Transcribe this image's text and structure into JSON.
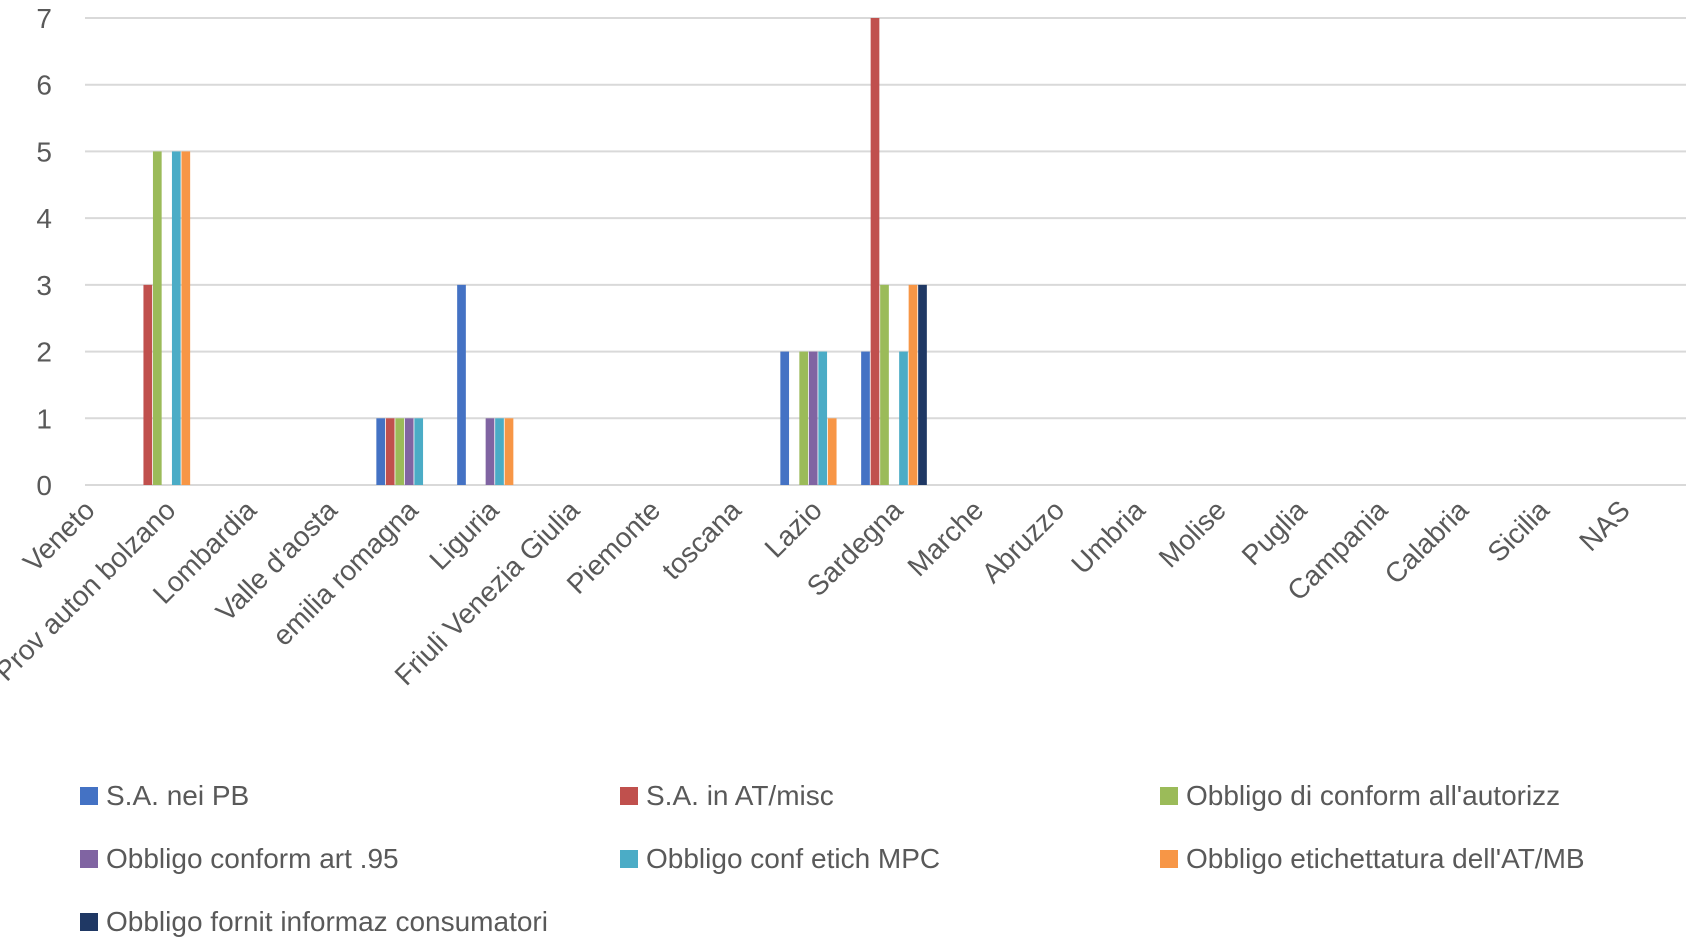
{
  "chart_data": {
    "type": "bar",
    "categories": [
      "Veneto",
      "Prov auton bolzano",
      "Lombardia",
      "Valle d'aosta",
      "emilia romagna",
      "Liguria",
      "Friuli Venezia Giulia",
      "Piemonte",
      "toscana",
      "Lazio",
      "Sardegna",
      "Marche",
      "Abruzzo",
      "Umbria",
      "Molise",
      "Puglia",
      "Campania",
      "Calabria",
      "Sicilia",
      "NAS"
    ],
    "ylim": [
      0,
      7
    ],
    "yticks": [
      "0",
      "1",
      "2",
      "3",
      "4",
      "5",
      "6",
      "7"
    ],
    "grid": true,
    "legend_position": "bottom",
    "series": [
      {
        "name": "S.A. nei PB",
        "color": "#4472C4",
        "values": [
          0,
          0,
          0,
          0,
          1,
          3,
          0,
          0,
          0,
          2,
          2,
          0,
          0,
          0,
          0,
          0,
          0,
          0,
          0,
          0
        ]
      },
      {
        "name": "S.A. in AT/misc",
        "color": "#C0504D",
        "values": [
          0,
          3,
          0,
          0,
          1,
          0,
          0,
          0,
          0,
          0,
          7,
          0,
          0,
          0,
          0,
          0,
          0,
          0,
          0,
          0
        ]
      },
      {
        "name": "Obbligo di conform all'autorizz",
        "color": "#9BBB59",
        "values": [
          0,
          5,
          0,
          0,
          1,
          0,
          0,
          0,
          0,
          2,
          3,
          0,
          0,
          0,
          0,
          0,
          0,
          0,
          0,
          0
        ]
      },
      {
        "name": "Obbligo conform art .95",
        "color": "#8064A2",
        "values": [
          0,
          0,
          0,
          0,
          1,
          1,
          0,
          0,
          0,
          2,
          0,
          0,
          0,
          0,
          0,
          0,
          0,
          0,
          0,
          0
        ]
      },
      {
        "name": "Obbligo conf etich MPC",
        "color": "#4BACC6",
        "values": [
          0,
          5,
          0,
          0,
          1,
          1,
          0,
          0,
          0,
          2,
          2,
          0,
          0,
          0,
          0,
          0,
          0,
          0,
          0,
          0
        ]
      },
      {
        "name": "Obbligo etichettatura  dell'AT/MB",
        "color": "#F79646",
        "values": [
          0,
          5,
          0,
          0,
          0,
          1,
          0,
          0,
          0,
          1,
          3,
          0,
          0,
          0,
          0,
          0,
          0,
          0,
          0,
          0
        ]
      },
      {
        "name": "Obbligo fornit informaz consumatori",
        "color": "#1F3864",
        "values": [
          0,
          0,
          0,
          0,
          0,
          0,
          0,
          0,
          0,
          0,
          3,
          0,
          0,
          0,
          0,
          0,
          0,
          0,
          0,
          0
        ]
      }
    ]
  }
}
